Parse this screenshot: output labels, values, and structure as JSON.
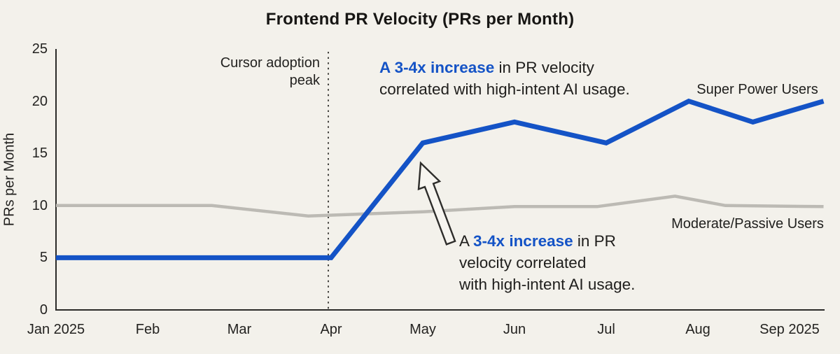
{
  "title": "Frontend PR Velocity (PRs per Month)",
  "colors": {
    "background": "#f3f1eb",
    "accent_blue": "#1453c6",
    "gray_line": "#bcbab4",
    "axis": "#2b2a28",
    "dotted_line": "#44433f",
    "text": "#1e1d1b"
  },
  "y_axis": {
    "label": "PRs per Month",
    "ticks": [
      0,
      5,
      10,
      15,
      20,
      25
    ]
  },
  "x_axis": {
    "labels": [
      "Jan 2025",
      "Feb",
      "Mar",
      "Apr",
      "May",
      "Jun",
      "Jul",
      "Aug",
      "Sep 2025"
    ]
  },
  "reference_line": {
    "line1": "Cursor adoption",
    "line2": "peak",
    "month_index": 3
  },
  "annotations": {
    "top": {
      "highlight": "A 3-4x increase",
      "after": " in PR velocity",
      "line2": "correlated with high-intent AI usage."
    },
    "bottom": {
      "before": "A ",
      "highlight": "3-4x increase",
      "after": " in PR",
      "line2": "velocity correlated",
      "line3": "with high-intent AI usage."
    }
  },
  "chart_data": {
    "type": "line",
    "title": "Frontend PR Velocity (PRs per Month)",
    "xlabel": "",
    "ylabel": "PRs per Month",
    "ylim": [
      0,
      25
    ],
    "grid": false,
    "legend_position": "inline-labels",
    "categories": [
      "Jan 2025",
      "Feb",
      "Mar",
      "Apr",
      "May",
      "Jun",
      "Jul",
      "Aug",
      "Sep 2025"
    ],
    "series": [
      {
        "name": "Super Power Users",
        "color": "#1453c6",
        "stroke_width": 7,
        "monthly_values": [
          5,
          5,
          5,
          5,
          16,
          18,
          16,
          20,
          20
        ],
        "note": "dips to 18 between Aug and Sep",
        "points": [
          [
            0,
            5
          ],
          [
            1,
            5
          ],
          [
            2,
            5
          ],
          [
            3,
            5
          ],
          [
            4,
            16
          ],
          [
            5,
            18
          ],
          [
            6,
            16
          ],
          [
            6.9,
            20
          ],
          [
            7.6,
            18
          ],
          [
            8.37,
            20
          ]
        ]
      },
      {
        "name": "Moderate/Passive Users",
        "color": "#bcbab4",
        "stroke_width": 4.5,
        "monthly_values": [
          10,
          10,
          10,
          9,
          9.5,
          10,
          10,
          11,
          10
        ],
        "points": [
          [
            0,
            10
          ],
          [
            1.7,
            10
          ],
          [
            2.75,
            9
          ],
          [
            4,
            9.4
          ],
          [
            5,
            9.9
          ],
          [
            5.9,
            9.9
          ],
          [
            6.75,
            10.9
          ],
          [
            7.3,
            10
          ],
          [
            8.37,
            9.9
          ]
        ]
      }
    ],
    "vline": {
      "at": "Apr",
      "label": "Cursor adoption peak",
      "style": "dotted"
    }
  }
}
